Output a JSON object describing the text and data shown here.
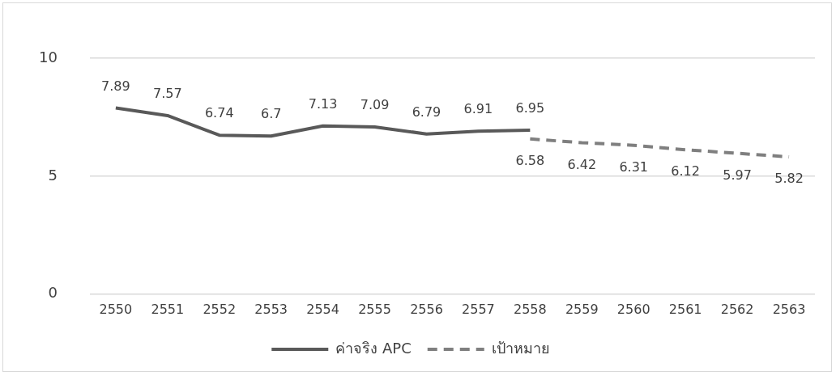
{
  "chart_data": {
    "type": "line",
    "categories": [
      "2550",
      "2551",
      "2552",
      "2553",
      "2554",
      "2555",
      "2556",
      "2557",
      "2558",
      "2559",
      "2560",
      "2561",
      "2562",
      "2563"
    ],
    "series": [
      {
        "name": "ค่าจริง APC",
        "color": "#595959",
        "line_style": "solid",
        "values": [
          7.89,
          7.57,
          6.74,
          6.7,
          7.13,
          7.09,
          6.79,
          6.91,
          6.95,
          null,
          null,
          null,
          null,
          null
        ]
      },
      {
        "name": "เป้าหมาย",
        "color": "#7f7f7f",
        "line_style": "dashed",
        "values": [
          null,
          null,
          null,
          null,
          null,
          null,
          null,
          null,
          6.58,
          6.42,
          6.31,
          6.12,
          5.97,
          5.82
        ]
      }
    ],
    "ylim": [
      0,
      10
    ],
    "yticks": [
      0,
      5,
      10
    ],
    "grid": "y",
    "legend": "bottom",
    "data_labels": true,
    "marker": "none"
  }
}
